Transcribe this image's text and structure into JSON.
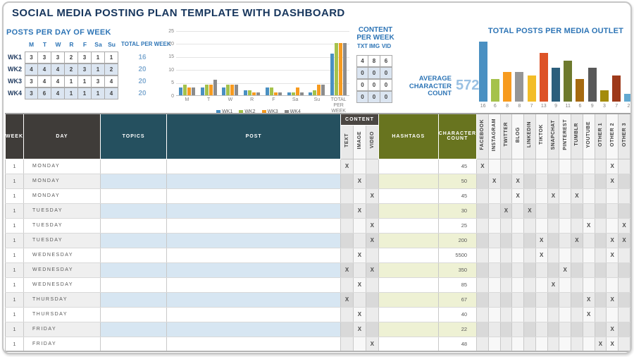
{
  "title": "SOCIAL MEDIA POSTING PLAN TEMPLATE WITH DASHBOARD",
  "posts_per_day": {
    "heading": "POSTS PER DAY OF WEEK",
    "day_headers": [
      "M",
      "T",
      "W",
      "R",
      "F",
      "Sa",
      "Su"
    ],
    "total_header": "TOTAL PER WEEK",
    "rows": [
      {
        "label": "WK1",
        "values": [
          3,
          3,
          3,
          2,
          3,
          1,
          1
        ],
        "total": 16
      },
      {
        "label": "WK2",
        "values": [
          4,
          4,
          4,
          2,
          3,
          1,
          2
        ],
        "total": 20
      },
      {
        "label": "WK3",
        "values": [
          3,
          4,
          4,
          1,
          1,
          3,
          4
        ],
        "total": 20
      },
      {
        "label": "WK4",
        "values": [
          3,
          6,
          4,
          1,
          1,
          1,
          4
        ],
        "total": 20
      }
    ]
  },
  "chart_data": [
    {
      "type": "bar",
      "title": "",
      "categories": [
        "M",
        "T",
        "W",
        "R",
        "F",
        "Sa",
        "Su",
        "TOTAL PER WEEK"
      ],
      "series": [
        {
          "name": "WK1",
          "color": "#4a90c2",
          "values": [
            3,
            3,
            3,
            2,
            3,
            1,
            1,
            16
          ]
        },
        {
          "name": "WK2",
          "color": "#a5c24b",
          "values": [
            4,
            4,
            4,
            2,
            3,
            1,
            2,
            20
          ]
        },
        {
          "name": "WK3",
          "color": "#f79b1f",
          "values": [
            3,
            4,
            4,
            1,
            1,
            3,
            4,
            20
          ]
        },
        {
          "name": "WK4",
          "color": "#8c8c8c",
          "values": [
            3,
            6,
            4,
            1,
            1,
            1,
            4,
            20
          ]
        }
      ],
      "ylim": [
        0,
        25
      ],
      "yticks": [
        0,
        5,
        10,
        15,
        20,
        25
      ],
      "grid": true,
      "legend_position": "bottom"
    },
    {
      "type": "bar",
      "title": "TOTAL POSTS PER MEDIA OUTLET",
      "categories": [
        "FACEBOOK",
        "INSTAGRAM",
        "TWITTER",
        "BLOG",
        "LINKEDIN",
        "TIKTOK",
        "SNAPCHAT",
        "PINTEREST",
        "TUMBLR",
        "YOUTUBE",
        "OTHER 1",
        "OTHER 2",
        "OTHER 3"
      ],
      "values": [
        16,
        6,
        8,
        8,
        7,
        13,
        9,
        11,
        6,
        9,
        3,
        7,
        2
      ],
      "colors": [
        "#4a90c2",
        "#a5c24b",
        "#f79b1f",
        "#969696",
        "#f3bd27",
        "#dd5327",
        "#2c5f7c",
        "#6e7a2e",
        "#a66a10",
        "#595959",
        "#a38b0a",
        "#9e3a1b",
        "#62a9d1"
      ],
      "ylim": [
        0,
        16
      ],
      "grid": false,
      "value_labels": true
    }
  ],
  "content_per_week": {
    "heading_line1": "CONTENT",
    "heading_line2": "PER WEEK",
    "columns": [
      "TXT",
      "IMG",
      "VID"
    ],
    "rows": [
      [
        4,
        8,
        6
      ],
      [
        0,
        0,
        0
      ],
      [
        0,
        0,
        0
      ],
      [
        0,
        0,
        0
      ]
    ]
  },
  "average_character": {
    "label_line1": "AVERAGE",
    "label_line2": "CHARACTER",
    "label_line3": "COUNT",
    "value": "572"
  },
  "main_table": {
    "headers": {
      "week": "WEEK",
      "day": "DAY",
      "topics": "TOPICS",
      "post": "POST",
      "content_group": "CONTENT",
      "content_sub": [
        "TEXT",
        "IMAGE",
        "VIDEO"
      ],
      "hashtags": "HASHTAGS",
      "char_count": "CHARACTER COUNT",
      "outlets": [
        "FACEBOOK",
        "INSTAGRAM",
        "TWITTER",
        "BLOG",
        "LINKEDIN",
        "TIKTOK",
        "SNAPCHAT",
        "PINTEREST",
        "TUMBLR",
        "YOUTUBE",
        "OTHER 1",
        "OTHER 2",
        "OTHER 3"
      ]
    },
    "rows": [
      {
        "week": "1",
        "day": "MONDAY",
        "topics": "",
        "post": "",
        "content": [
          "TEXT"
        ],
        "hashtags": "",
        "char_count": "45",
        "outlets": [
          "FACEBOOK",
          "OTHER 2"
        ]
      },
      {
        "week": "1",
        "day": "MONDAY",
        "topics": "",
        "post": "",
        "content": [
          "IMAGE"
        ],
        "hashtags": "",
        "char_count": "50",
        "outlets": [
          "INSTAGRAM",
          "BLOG",
          "OTHER 2"
        ]
      },
      {
        "week": "1",
        "day": "MONDAY",
        "topics": "",
        "post": "",
        "content": [
          "VIDEO"
        ],
        "hashtags": "",
        "char_count": "45",
        "outlets": [
          "BLOG",
          "SNAPCHAT",
          "TUMBLR"
        ]
      },
      {
        "week": "1",
        "day": "TUESDAY",
        "topics": "",
        "post": "",
        "content": [
          "IMAGE"
        ],
        "hashtags": "",
        "char_count": "30",
        "outlets": [
          "TWITTER",
          "LINKEDIN"
        ]
      },
      {
        "week": "1",
        "day": "TUESDAY",
        "topics": "",
        "post": "",
        "content": [
          "VIDEO"
        ],
        "hashtags": "",
        "char_count": "25",
        "outlets": [
          "YOUTUBE",
          "OTHER 3"
        ]
      },
      {
        "week": "1",
        "day": "TUESDAY",
        "topics": "",
        "post": "",
        "content": [
          "VIDEO"
        ],
        "hashtags": "",
        "char_count": "200",
        "outlets": [
          "TIKTOK",
          "TUMBLR",
          "OTHER 2",
          "OTHER 3"
        ]
      },
      {
        "week": "1",
        "day": "WEDNESDAY",
        "topics": "",
        "post": "",
        "content": [
          "IMAGE"
        ],
        "hashtags": "",
        "char_count": "5500",
        "outlets": [
          "TIKTOK",
          "OTHER 2"
        ]
      },
      {
        "week": "1",
        "day": "WEDNESDAY",
        "topics": "",
        "post": "",
        "content": [
          "TEXT",
          "VIDEO"
        ],
        "hashtags": "",
        "char_count": "350",
        "outlets": [
          "PINTEREST"
        ]
      },
      {
        "week": "1",
        "day": "WEDNESDAY",
        "topics": "",
        "post": "",
        "content": [
          "IMAGE"
        ],
        "hashtags": "",
        "char_count": "85",
        "outlets": [
          "SNAPCHAT"
        ]
      },
      {
        "week": "1",
        "day": "THURSDAY",
        "topics": "",
        "post": "",
        "content": [
          "TEXT"
        ],
        "hashtags": "",
        "char_count": "67",
        "outlets": [
          "YOUTUBE",
          "OTHER 2"
        ]
      },
      {
        "week": "1",
        "day": "THURSDAY",
        "topics": "",
        "post": "",
        "content": [
          "IMAGE"
        ],
        "hashtags": "",
        "char_count": "40",
        "outlets": [
          "YOUTUBE"
        ]
      },
      {
        "week": "1",
        "day": "FRIDAY",
        "topics": "",
        "post": "",
        "content": [
          "IMAGE"
        ],
        "hashtags": "",
        "char_count": "22",
        "outlets": [
          "OTHER 2"
        ]
      },
      {
        "week": "1",
        "day": "FRIDAY",
        "topics": "",
        "post": "",
        "content": [
          "VIDEO"
        ],
        "hashtags": "",
        "char_count": "48",
        "outlets": [
          "OTHER 1",
          "OTHER 2"
        ]
      }
    ]
  }
}
